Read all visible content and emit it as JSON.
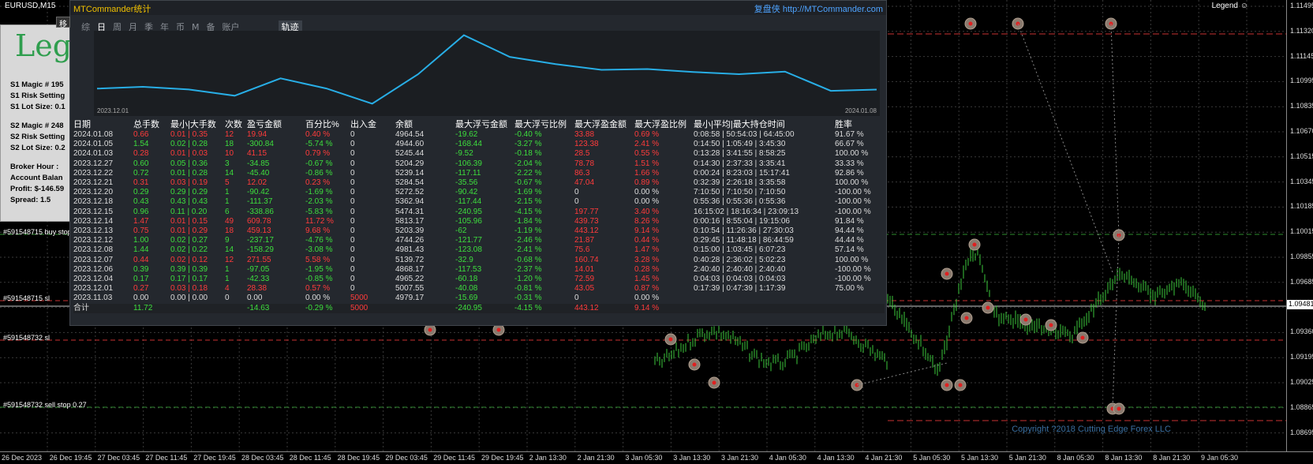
{
  "chart": {
    "symbol": "EURUSD,M15",
    "legend_label": "Legend",
    "price_ticks": [
      "1.11495",
      "1.11320",
      "1.11145",
      "1.10995",
      "1.10835",
      "1.10670",
      "1.10515",
      "1.10345",
      "1.10185",
      "1.10015",
      "1.09855",
      "1.09685",
      "1.09525",
      "1.09360",
      "1.09195",
      "1.09025",
      "1.08865",
      "1.08695"
    ],
    "current_price": "1.09481",
    "time_ticks": [
      "26 Dec 2023",
      "26 Dec 19:45",
      "27 Dec 03:45",
      "27 Dec 11:45",
      "27 Dec 19:45",
      "28 Dec 03:45",
      "28 Dec 11:45",
      "28 Dec 19:45",
      "29 Dec 03:45",
      "29 Dec 11:45",
      "29 Dec 19:45",
      "2 Jan 13:30",
      "2 Jan 21:30",
      "3 Jan 05:30",
      "3 Jan 13:30",
      "3 Jan 21:30",
      "4 Jan 05:30",
      "4 Jan 13:30",
      "4 Jan 21:30",
      "5 Jan 05:30",
      "5 Jan 13:30",
      "5 Jan 21:30",
      "8 Jan 05:30",
      "8 Jan 13:30",
      "8 Jan 21:30",
      "9 Jan 05:30"
    ],
    "line_labels": [
      {
        "text": "#591548715 buy stop"
      },
      {
        "text": "#591548715 sl"
      },
      {
        "text": "#591548732 sl"
      },
      {
        "text": "#591548732 sell stop 0.27"
      }
    ],
    "copyright": "Copyright ?2018 Cutting Edge Forex LLC"
  },
  "legend_box": {
    "title": "Leg",
    "lines": [
      "S1 Magic # 195",
      "S1 Risk Setting",
      "S1 Lot Size: 0.1",
      "S2 Magic # 248",
      "S2 Risk Setting",
      "S2 Lot Size: 0.2",
      "Broker Hour : ",
      "Account Balan",
      "Profit: $-146.59",
      "Spread:  1.5"
    ]
  },
  "panel": {
    "title": "MTCommander统计",
    "site": "复盘侠 http://MTCommander.com",
    "tabs": [
      "综",
      "日",
      "周",
      "月",
      "季",
      "年",
      "币",
      "M",
      "备",
      "账户"
    ],
    "active_tab": "日",
    "trail_tab": "轨迹",
    "side_tab": "移",
    "equity": {
      "start_date": "2023.12.01",
      "end_date": "2024.01.08",
      "values": [
        4979.17,
        5007.55,
        4965.22,
        4868.17,
        5139.72,
        4981.43,
        4744.26,
        5203.39,
        5813.17,
        5474.31,
        5362.94,
        5272.52,
        5284.54,
        5239.14,
        5204.29,
        5245.44,
        4944.6,
        4964.54
      ],
      "color": "#28aee6"
    },
    "columns": [
      "日期",
      "总手数",
      "最小|大手数",
      "次数",
      "盈亏金额",
      "百分比%",
      "出入金",
      "余额",
      "最大浮亏金额",
      "最大浮亏比例",
      "最大浮盈金额",
      "最大浮盈比例",
      "最小|平均|最大持仓时间",
      "胜率"
    ],
    "rows": [
      [
        "2024.01.08",
        "0.66",
        "0.01 | 0.35",
        "12",
        "19.94",
        "0.40 %",
        "0",
        "4964.54",
        "-19.62",
        "-0.40 %",
        "33.88",
        "0.69 %",
        "0:08:58 | 50:54:03 | 64:45:00",
        "91.67 %"
      ],
      [
        "2024.01.05",
        "1.54",
        "0.02 | 0.28",
        "18",
        "-300.84",
        "-5.74 %",
        "0",
        "4944.60",
        "-168.44",
        "-3.27 %",
        "123.38",
        "2.41 %",
        "0:14:50 | 1:05:49 | 3:45:30",
        "66.67 %"
      ],
      [
        "2024.01.03",
        "0.28",
        "0.01 | 0.03",
        "10",
        "41.15",
        "0.79 %",
        "0",
        "5245.44",
        "-9.52",
        "-0.18 %",
        "28.5",
        "0.55 %",
        "0:13:28 | 3:41:55 | 8:58:25",
        "100.00 %"
      ],
      [
        "2023.12.27",
        "0.60",
        "0.05 | 0.36",
        "3",
        "-34.85",
        "-0.67 %",
        "0",
        "5204.29",
        "-106.39",
        "-2.04 %",
        "78.78",
        "1.51 %",
        "0:14:30 | 2:37:33 | 3:35:41",
        "33.33 %"
      ],
      [
        "2023.12.22",
        "0.72",
        "0.01 | 0.28",
        "14",
        "-45.40",
        "-0.86 %",
        "0",
        "5239.14",
        "-117.11",
        "-2.22 %",
        "86.3",
        "1.66 %",
        "0:00:24 | 8:23:03 | 15:17:41",
        "92.86 %"
      ],
      [
        "2023.12.21",
        "0.31",
        "0.03 | 0.19",
        "5",
        "12.02",
        "0.23 %",
        "0",
        "5284.54",
        "-35.56",
        "-0.67 %",
        "47.04",
        "0.89 %",
        "0:32:39 | 2:26:18 | 3:35:58",
        "100.00 %"
      ],
      [
        "2023.12.20",
        "0.29",
        "0.29 | 0.29",
        "1",
        "-90.42",
        "-1.69 %",
        "0",
        "5272.52",
        "-90.42",
        "-1.69 %",
        "0",
        "0.00 %",
        "7:10:50 | 7:10:50 | 7:10:50",
        "-100.00 %"
      ],
      [
        "2023.12.18",
        "0.43",
        "0.43 | 0.43",
        "1",
        "-111.37",
        "-2.03 %",
        "0",
        "5362.94",
        "-117.44",
        "-2.15 %",
        "0",
        "0.00 %",
        "0:55:36 | 0:55:36 | 0:55:36",
        "-100.00 %"
      ],
      [
        "2023.12.15",
        "0.96",
        "0.11 | 0.20",
        "6",
        "-338.86",
        "-5.83 %",
        "0",
        "5474.31",
        "-240.95",
        "-4.15 %",
        "197.77",
        "3.40 %",
        "16:15:02 | 18:16:34 | 23:09:13",
        "-100.00 %"
      ],
      [
        "2023.12.14",
        "1.47",
        "0.01 | 0.15",
        "49",
        "609.78",
        "11.72 %",
        "0",
        "5813.17",
        "-105.96",
        "-1.84 %",
        "439.73",
        "8.26 %",
        "0:00:16 | 8:55:04 | 19:15:06",
        "91.84 %"
      ],
      [
        "2023.12.13",
        "0.75",
        "0.01 | 0.29",
        "18",
        "459.13",
        "9.68 %",
        "0",
        "5203.39",
        "-62",
        "-1.19 %",
        "443.12",
        "9.14 %",
        "0:10:54 | 11:26:36 | 27:30:03",
        "94.44 %"
      ],
      [
        "2023.12.12",
        "1.00",
        "0.02 | 0.27",
        "9",
        "-237.17",
        "-4.76 %",
        "0",
        "4744.26",
        "-121.77",
        "-2.46 %",
        "21.87",
        "0.44 %",
        "0:29:45 | 11:48:18 | 86:44:59",
        "44.44 %"
      ],
      [
        "2023.12.08",
        "1.44",
        "0.02 | 0.22",
        "14",
        "-158.29",
        "-3.08 %",
        "0",
        "4981.43",
        "-123.08",
        "-2.41 %",
        "75.6",
        "1.47 %",
        "0:15:00 | 1:03:45 | 6:07:23",
        "57.14 %"
      ],
      [
        "2023.12.07",
        "0.44",
        "0.02 | 0.12",
        "12",
        "271.55",
        "5.58 %",
        "0",
        "5139.72",
        "-32.9",
        "-0.68 %",
        "160.74",
        "3.28 %",
        "0:40:28 | 2:36:02 | 5:02:23",
        "100.00 %"
      ],
      [
        "2023.12.06",
        "0.39",
        "0.39 | 0.39",
        "1",
        "-97.05",
        "-1.95 %",
        "0",
        "4868.17",
        "-117.53",
        "-2.37 %",
        "14.01",
        "0.28 %",
        "2:40:40 | 2:40:40 | 2:40:40",
        "-100.00 %"
      ],
      [
        "2023.12.04",
        "0.17",
        "0.17 | 0.17",
        "1",
        "-42.33",
        "-0.85 %",
        "0",
        "4965.22",
        "-60.18",
        "-1.20 %",
        "72.59",
        "1.45 %",
        "0:04:03 | 0:04:03 | 0:04:03",
        "-100.00 %"
      ],
      [
        "2023.12.01",
        "0.27",
        "0.03 | 0.18",
        "4",
        "28.38",
        "0.57 %",
        "0",
        "5007.55",
        "-40.08",
        "-0.81 %",
        "43.05",
        "0.87 %",
        "0:17:39 | 0:47:39 | 1:17:39",
        "75.00 %"
      ],
      [
        "2023.11.03",
        "0.00",
        "0.00 | 0.00",
        "0",
        "0.00",
        "0.00 %",
        "5000",
        "4979.17",
        "-15.69",
        "-0.31 %",
        "0",
        "0.00 %",
        "",
        ""
      ]
    ],
    "total": [
      "合计",
      "11.72",
      "",
      "",
      "-14.63",
      "-0.29 %",
      "5000",
      "",
      "-240.95",
      "-4.15 %",
      "443.12",
      "9.14 %",
      "",
      ""
    ]
  }
}
